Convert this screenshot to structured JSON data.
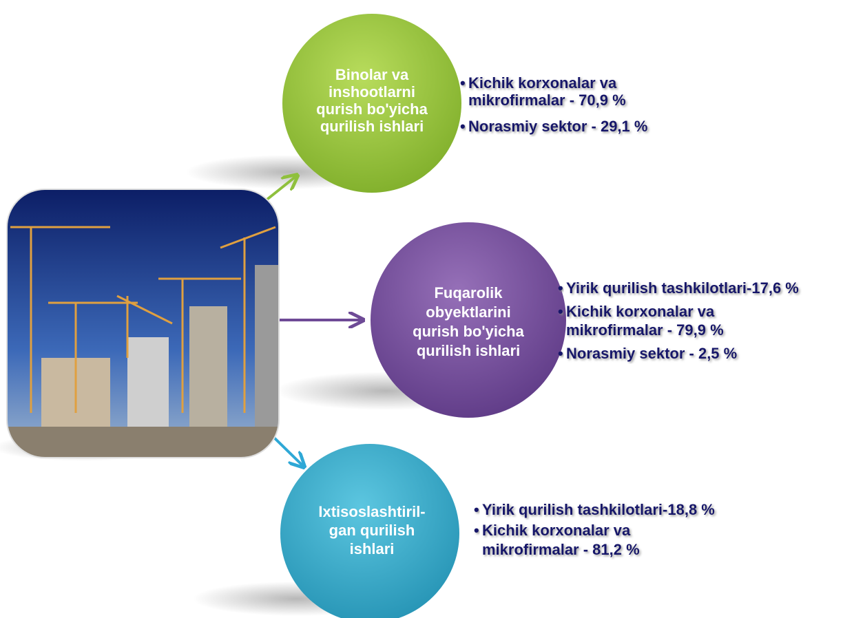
{
  "nodes": [
    {
      "label": [
        "Binolar va",
        "inshootlarni",
        "qurish bo'yicha",
        "qurilish ishlari"
      ],
      "bullets": [
        [
          "Kichik korxonalar va",
          "mikrofirmalar - 70,9 %"
        ],
        [
          "Norasmiy sektor - 29,1 %"
        ]
      ]
    },
    {
      "label": [
        "Fuqarolik",
        "obyektlarini",
        "qurish bo'yicha",
        "qurilish ishlari"
      ],
      "bullets": [
        [
          "Yirik qurilish tashkilotlari-17,6 %"
        ],
        [
          "Kichik korxonalar va",
          "mikrofirmalar - 79,9 %"
        ],
        [
          "Norasmiy sektor - 2,5 %"
        ]
      ]
    },
    {
      "label": [
        "Ixtisoslashtiril-",
        "gan qurilish",
        "ishlari"
      ],
      "bullets": [
        [
          "Yirik qurilish tashkilotlari-18,8 %"
        ],
        [
          "Kichik korxonalar va",
          "mikrofirmalar - 81,2 %"
        ]
      ]
    }
  ]
}
